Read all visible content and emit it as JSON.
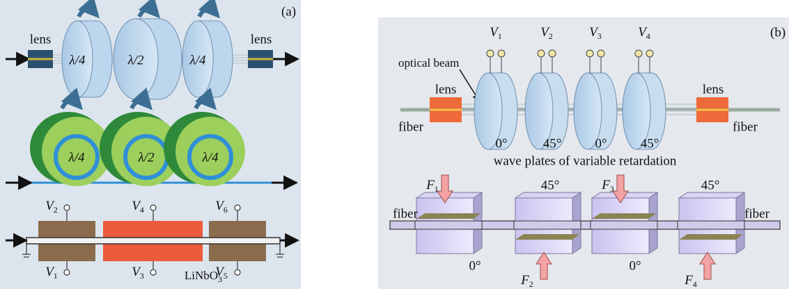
{
  "panel_a": {
    "label": "(a)",
    "lens_labels": [
      "lens",
      "lens"
    ],
    "plates": [
      "λ/4",
      "λ/2",
      "λ/4"
    ],
    "rings": [
      "λ/4",
      "λ/2",
      "λ/4"
    ],
    "electrodes_top": [
      {
        "symbol": "V",
        "sub": "2"
      },
      {
        "symbol": "V",
        "sub": "4"
      },
      {
        "symbol": "V",
        "sub": "6"
      }
    ],
    "electrodes_bottom": [
      {
        "symbol": "V",
        "sub": "1"
      },
      {
        "symbol": "V",
        "sub": "3"
      },
      {
        "symbol": "V",
        "sub": "5"
      }
    ],
    "substrate": {
      "text": "LiNbO",
      "sub": "3"
    }
  },
  "panel_b": {
    "label": "(b)",
    "voltages": [
      {
        "symbol": "V",
        "sub": "1"
      },
      {
        "symbol": "V",
        "sub": "2"
      },
      {
        "symbol": "V",
        "sub": "3"
      },
      {
        "symbol": "V",
        "sub": "4"
      }
    ],
    "beam_label": "optical beam",
    "lens_labels": [
      "lens",
      "lens"
    ],
    "fiber_labels": [
      "fiber",
      "fiber"
    ],
    "plate_angles": [
      "0°",
      "45°",
      "0°",
      "45°"
    ],
    "caption": "wave plates of variable retardation",
    "forces": [
      {
        "symbol": "F",
        "sub": "1"
      },
      {
        "symbol": "F",
        "sub": "2"
      },
      {
        "symbol": "F",
        "sub": "3"
      },
      {
        "symbol": "F",
        "sub": "4"
      }
    ],
    "block_angles_top": [
      "45°",
      "45°"
    ],
    "block_angles_bottom": [
      "0°",
      "0°"
    ],
    "lower_fiber_labels": [
      "fiber",
      "fiber"
    ]
  }
}
